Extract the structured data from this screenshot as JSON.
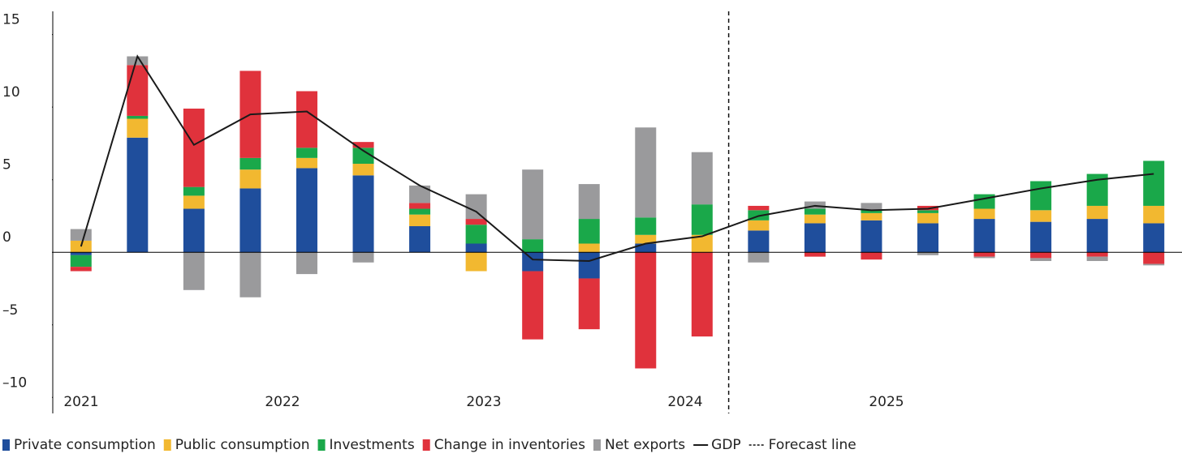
{
  "chart_data": {
    "type": "bar",
    "year_labels": [
      "2021",
      "2022",
      "2023",
      "2024",
      "2025"
    ],
    "ylim": [
      -11.1,
      16.6
    ],
    "yticks": [
      {
        "value": -10,
        "label": "–10"
      },
      {
        "value": -5,
        "label": "–5"
      },
      0,
      5,
      10,
      15
    ],
    "forecast_after": 12,
    "forecast_label": "Forecast line",
    "series": [
      {
        "name": "Private consumption",
        "color": "#1f4e9c",
        "values": [
          -0.2,
          7.9,
          3.0,
          4.4,
          5.8,
          5.3,
          1.8,
          0.6,
          -1.3,
          -1.8,
          0.6,
          0,
          1.5,
          2.0,
          2.2,
          2.0,
          2.3,
          2.1,
          2.3,
          2.0
        ]
      },
      {
        "name": "Public consumption",
        "color": "#f2b830",
        "values": [
          0.8,
          1.3,
          0.9,
          1.3,
          0.7,
          0.8,
          0.8,
          -1.3,
          0,
          0.6,
          0.6,
          1.2,
          0.7,
          0.6,
          0.5,
          0.7,
          0.7,
          0.8,
          0.9,
          1.2
        ]
      },
      {
        "name": "Investments",
        "color": "#1aa84a",
        "values": [
          -0.8,
          0.2,
          0.6,
          0.8,
          0.7,
          1.1,
          0.4,
          1.3,
          0.9,
          1.7,
          1.2,
          2.1,
          0.7,
          0.4,
          0.2,
          0.2,
          1.0,
          2.0,
          2.2,
          3.1
        ]
      },
      {
        "name": "Change in inventories",
        "color": "#e0323c",
        "values": [
          -0.3,
          3.5,
          5.4,
          6.0,
          3.9,
          0.4,
          0.4,
          0.4,
          -4.7,
          -3.5,
          -8.0,
          -5.8,
          0.3,
          -0.3,
          -0.5,
          0.3,
          -0.3,
          -0.4,
          -0.3,
          -0.8
        ]
      },
      {
        "name": "Net exports",
        "color": "#9a9a9c",
        "values": [
          0.8,
          0.6,
          -2.6,
          -3.1,
          -1.5,
          -0.7,
          1.2,
          1.7,
          4.8,
          2.4,
          6.2,
          3.6,
          -0.7,
          0.5,
          0.5,
          -0.2,
          -0.1,
          -0.2,
          -0.3,
          -0.1
        ]
      },
      {
        "name": "GDP",
        "type": "line",
        "color": "#1a1a1a",
        "values": [
          0.4,
          13.5,
          7.4,
          9.5,
          9.7,
          7.0,
          4.6,
          2.8,
          -0.5,
          -0.6,
          0.6,
          1.1,
          2.5,
          3.2,
          2.9,
          3.0,
          3.7,
          4.4,
          5.0,
          5.4
        ]
      }
    ]
  }
}
